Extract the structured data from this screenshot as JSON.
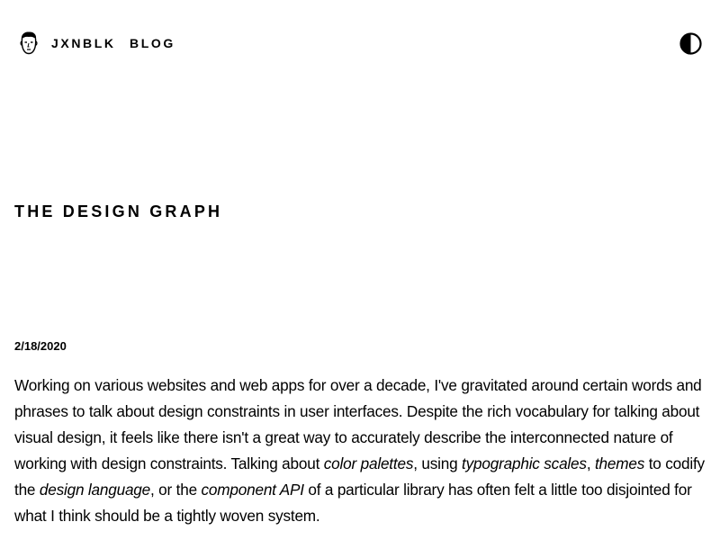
{
  "header": {
    "logo_icon": "face-avatar-icon",
    "nav": {
      "home_label": "JXNBLK",
      "blog_label": "BLOG"
    },
    "theme_toggle_icon": "half-circle-contrast-icon"
  },
  "post": {
    "title": "THE DESIGN GRAPH",
    "date": "2/18/2020",
    "paragraph": {
      "t1": "Working on various websites and web apps for over a decade, I've gravitated around certain words and phrases to talk about design constraints in user interfaces. Despite the rich vocabulary for talking about visual design, it feels like there isn't a great way to accurately describe the interconnected nature of working with design constraints. Talking about ",
      "em1": "color palettes",
      "t2": ", using ",
      "em2": "typographic scales",
      "t3": ", ",
      "em3": "themes",
      "t4": " to codify the ",
      "em4": "design language",
      "t5": ", or the ",
      "em5": "component API",
      "t6": " of a particular library has often felt a little too disjointed for what I think should be a tightly woven system."
    }
  },
  "colors": {
    "background": "#ffffff",
    "text": "#000000"
  }
}
